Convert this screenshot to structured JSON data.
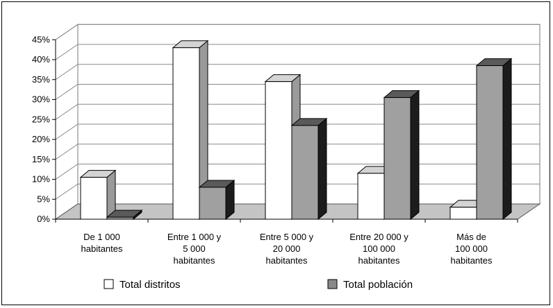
{
  "chart_data": {
    "type": "bar",
    "view": "3d-clustered-column",
    "title": "",
    "xlabel": "",
    "ylabel": "",
    "ylim": [
      0,
      45
    ],
    "yticks": [
      "0%",
      "5%",
      "10%",
      "15%",
      "20%",
      "25%",
      "30%",
      "35%",
      "40%",
      "45%"
    ],
    "grid": true,
    "legend_position": "bottom",
    "categories": [
      [
        "De 1 000",
        "habitantes"
      ],
      [
        "Entre 1 000 y",
        "5 000",
        "habitantes"
      ],
      [
        "Entre 5 000 y",
        "20 000",
        "habitantes"
      ],
      [
        "Entre 20 000 y",
        "100 000",
        "habitantes"
      ],
      [
        "Más de",
        "100 000",
        "habitantes"
      ]
    ],
    "series": [
      {
        "name": "Total distritos",
        "color": "#ffffff",
        "values": [
          10.5,
          43,
          34.5,
          11.5,
          3
        ]
      },
      {
        "name": "Total población",
        "color": "#a0a0a0",
        "values": [
          0.5,
          8,
          23.5,
          30.5,
          38.5
        ]
      }
    ]
  }
}
